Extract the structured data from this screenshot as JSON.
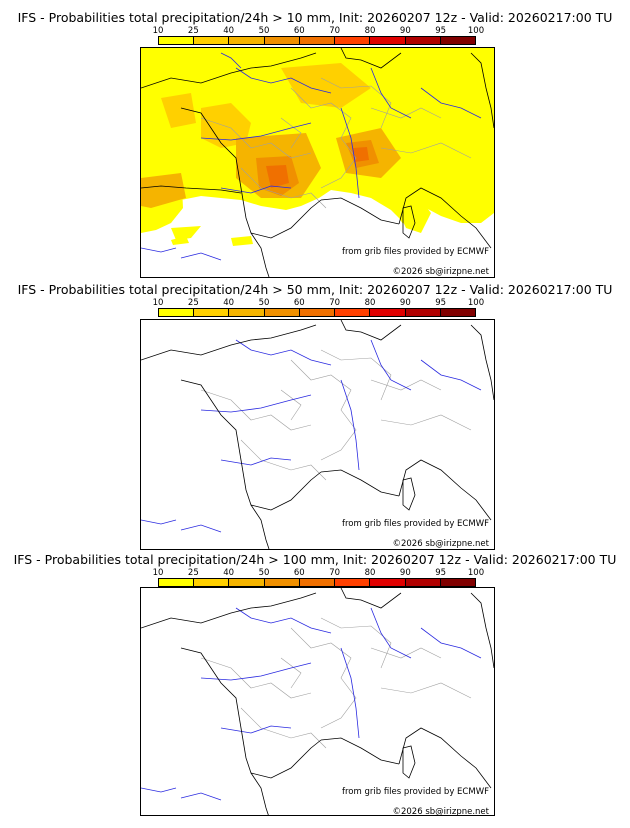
{
  "colorbar": {
    "ticks": [
      "10",
      "25",
      "40",
      "50",
      "60",
      "70",
      "80",
      "90",
      "95",
      "100"
    ],
    "colors": [
      "#ffff00",
      "#ffd000",
      "#f5b400",
      "#f09000",
      "#f07000",
      "#ff4000",
      "#e00000",
      "#b00000",
      "#800000",
      "#500000"
    ]
  },
  "panels": [
    {
      "title": "IFS - Probabilities total precipitation/24h > 10 mm, Init: 20260207 12z - Valid: 20260217:00 TU"
    },
    {
      "title": "IFS - Probabilities total precipitation/24h > 50 mm, Init: 20260207 12z - Valid: 20260217:00 TU"
    },
    {
      "title": "IFS - Probabilities total precipitation/24h > 100 mm, Init: 20260207 12z - Valid: 20260217:00 TU"
    }
  ],
  "credits": {
    "source": "from grib files provided by ECMWF",
    "copyright": "©2026 sb@irizpne.net"
  },
  "map_colors": {
    "coast": "#000000",
    "rivers": "#2a2ae0",
    "borders": "#a0a0a0"
  }
}
